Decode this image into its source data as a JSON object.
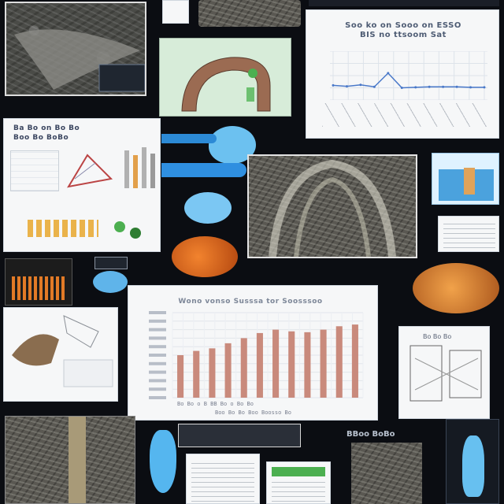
{
  "collage": {
    "line_panel_title": "Soo ko on Sooo on ESSO\nBIS no ttsoom Sat",
    "small_chart_title": "Ba Bo on Bo Bo\nBoo Bo BoBo",
    "bar_panel_title": "Wono vonso Susssa tor Soosssoo",
    "bar_panel_caption": "Bo Bo o  B BB  Bo o Bo Bo",
    "bar_panel_caption2": "Boo Bo Bo Boo Boosso Bo",
    "right_card_title": "Bo Bo Bo",
    "bottom_label": "BBoo BoBo"
  },
  "chart_data": [
    {
      "type": "line",
      "title": "Soo ko on Sooo on ESSO BIS no ttsoom Sat",
      "x": [
        1,
        2,
        3,
        4,
        5,
        6,
        7,
        8,
        9,
        10,
        11,
        12
      ],
      "series": [
        {
          "values": [
            0.3,
            0.28,
            0.31,
            0.27,
            0.55,
            0.25,
            0.26,
            0.27,
            0.27,
            0.27,
            0.26,
            0.26
          ]
        }
      ],
      "ylim": [
        0,
        1
      ],
      "grid": true,
      "colors": [
        "#4a79c9"
      ]
    },
    {
      "type": "bar",
      "title": "Wono vonso Susssa tor Soosssoo",
      "values": [
        50,
        55,
        58,
        64,
        70,
        76,
        80,
        78,
        77,
        80,
        84,
        86
      ],
      "ylim": [
        0,
        100
      ],
      "grid": true,
      "colors": [
        "#c98a7c"
      ]
    }
  ],
  "colors": {
    "background": "#0b0d12",
    "accent_blue": "#5fb4ea",
    "accent_orange": "#e06a24",
    "bar": "#c98a7c",
    "line": "#4a79c9"
  }
}
